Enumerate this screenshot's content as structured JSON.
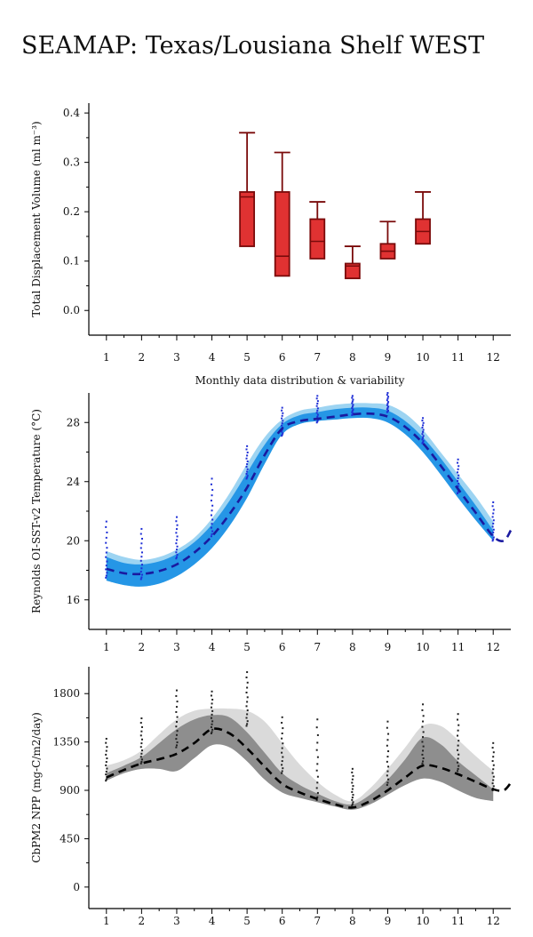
{
  "page": {
    "title": "SEAMAP: Texas/Lousiana Shelf WEST"
  },
  "chart_data": [
    {
      "type": "box",
      "ylabel": "Total Displacement Volume (ml m⁻³)",
      "xlabel": "Monthly data distribution & variability",
      "x_ticks": [
        1,
        2,
        3,
        4,
        5,
        6,
        7,
        8,
        9,
        10,
        11,
        12
      ],
      "y_ticks": [
        0.0,
        0.1,
        0.2,
        0.3,
        0.4
      ],
      "y_tick_labels": [
        "0.0",
        "0.1",
        "0.2",
        "0.3",
        "0.4"
      ],
      "ylim": [
        -0.05,
        0.42
      ],
      "xlim": [
        0.5,
        12.5
      ],
      "box_color": "#e03232",
      "box_edge_color": "#7a0b0b",
      "boxes": [
        {
          "month": 5,
          "q1": 0.13,
          "median": 0.23,
          "q3": 0.24,
          "whisker_high": 0.36
        },
        {
          "month": 6,
          "q1": 0.07,
          "median": 0.11,
          "q3": 0.24,
          "whisker_high": 0.32
        },
        {
          "month": 7,
          "q1": 0.105,
          "median": 0.14,
          "q3": 0.185,
          "whisker_high": 0.22
        },
        {
          "month": 8,
          "q1": 0.065,
          "median": 0.09,
          "q3": 0.095,
          "whisker_high": 0.13
        },
        {
          "month": 9,
          "q1": 0.105,
          "median": 0.12,
          "q3": 0.135,
          "whisker_high": 0.18
        },
        {
          "month": 10,
          "q1": 0.135,
          "median": 0.16,
          "q3": 0.185,
          "whisker_high": 0.24
        }
      ]
    },
    {
      "type": "line",
      "ylabel": "Reynolds OI-SST-v2 Temperature (°C)",
      "x_ticks": [
        1,
        2,
        3,
        4,
        5,
        6,
        7,
        8,
        9,
        10,
        11,
        12
      ],
      "y_ticks": [
        16,
        20,
        24,
        28
      ],
      "y_tick_labels": [
        "16",
        "20",
        "24",
        "28"
      ],
      "ylim": [
        14,
        30
      ],
      "xlim": [
        0.5,
        12.5
      ],
      "line_color": "#1a1aa0",
      "band_light_color": "#9dd4f2",
      "band_dark_color": "#2596e6",
      "dot_color": "#1f2fd6",
      "mean": [
        {
          "x": 1,
          "y": 18.1
        },
        {
          "x": 1.5,
          "y": 17.8
        },
        {
          "x": 2,
          "y": 17.75
        },
        {
          "x": 2.5,
          "y": 17.95
        },
        {
          "x": 3,
          "y": 18.4
        },
        {
          "x": 3.5,
          "y": 19.2
        },
        {
          "x": 4,
          "y": 20.3
        },
        {
          "x": 4.5,
          "y": 21.8
        },
        {
          "x": 5,
          "y": 23.6
        },
        {
          "x": 5.5,
          "y": 25.8
        },
        {
          "x": 6,
          "y": 27.6
        },
        {
          "x": 6.5,
          "y": 28.1
        },
        {
          "x": 7,
          "y": 28.25
        },
        {
          "x": 7.5,
          "y": 28.4
        },
        {
          "x": 8,
          "y": 28.55
        },
        {
          "x": 8.5,
          "y": 28.6
        },
        {
          "x": 9,
          "y": 28.4
        },
        {
          "x": 9.5,
          "y": 27.7
        },
        {
          "x": 10,
          "y": 26.6
        },
        {
          "x": 10.5,
          "y": 25.1
        },
        {
          "x": 11,
          "y": 23.5
        },
        {
          "x": 11.5,
          "y": 21.9
        },
        {
          "x": 12,
          "y": 20.3
        },
        {
          "x": 12.3,
          "y": 20.0
        },
        {
          "x": 12.5,
          "y": 20.7
        }
      ],
      "band_low": [
        {
          "x": 1,
          "y": 17.3
        },
        {
          "x": 1.5,
          "y": 17.0
        },
        {
          "x": 2,
          "y": 16.9
        },
        {
          "x": 2.5,
          "y": 17.1
        },
        {
          "x": 3,
          "y": 17.6
        },
        {
          "x": 3.5,
          "y": 18.4
        },
        {
          "x": 4,
          "y": 19.5
        },
        {
          "x": 4.5,
          "y": 21.0
        },
        {
          "x": 5,
          "y": 22.9
        },
        {
          "x": 5.5,
          "y": 25.2
        },
        {
          "x": 6,
          "y": 27.2
        },
        {
          "x": 6.5,
          "y": 27.9
        },
        {
          "x": 7,
          "y": 28.1
        },
        {
          "x": 7.5,
          "y": 28.2
        },
        {
          "x": 8,
          "y": 28.3
        },
        {
          "x": 8.5,
          "y": 28.3
        },
        {
          "x": 9,
          "y": 28.0
        },
        {
          "x": 9.5,
          "y": 27.2
        },
        {
          "x": 10,
          "y": 26.0
        },
        {
          "x": 10.5,
          "y": 24.5
        },
        {
          "x": 11,
          "y": 22.9
        },
        {
          "x": 11.5,
          "y": 21.4
        },
        {
          "x": 12,
          "y": 20.0
        }
      ],
      "band_mid_high": [
        {
          "x": 1,
          "y": 18.9
        },
        {
          "x": 1.5,
          "y": 18.5
        },
        {
          "x": 2,
          "y": 18.4
        },
        {
          "x": 2.5,
          "y": 18.6
        },
        {
          "x": 3,
          "y": 19.1
        },
        {
          "x": 3.5,
          "y": 19.9
        },
        {
          "x": 4,
          "y": 21.1
        },
        {
          "x": 4.5,
          "y": 22.7
        },
        {
          "x": 5,
          "y": 24.6
        },
        {
          "x": 5.5,
          "y": 26.5
        },
        {
          "x": 6,
          "y": 27.9
        },
        {
          "x": 6.5,
          "y": 28.5
        },
        {
          "x": 7,
          "y": 28.7
        },
        {
          "x": 7.5,
          "y": 28.9
        },
        {
          "x": 8,
          "y": 29.0
        },
        {
          "x": 8.5,
          "y": 29.0
        },
        {
          "x": 9,
          "y": 28.8
        },
        {
          "x": 9.5,
          "y": 28.1
        },
        {
          "x": 10,
          "y": 27.0
        },
        {
          "x": 10.5,
          "y": 25.6
        },
        {
          "x": 11,
          "y": 24.0
        },
        {
          "x": 11.5,
          "y": 22.4
        },
        {
          "x": 12,
          "y": 20.7
        }
      ],
      "band_high": [
        {
          "x": 1,
          "y": 19.3
        },
        {
          "x": 1.5,
          "y": 18.9
        },
        {
          "x": 2,
          "y": 18.7
        },
        {
          "x": 2.5,
          "y": 18.9
        },
        {
          "x": 3,
          "y": 19.4
        },
        {
          "x": 3.5,
          "y": 20.2
        },
        {
          "x": 4,
          "y": 21.5
        },
        {
          "x": 4.5,
          "y": 23.2
        },
        {
          "x": 5,
          "y": 25.2
        },
        {
          "x": 5.5,
          "y": 27.0
        },
        {
          "x": 6,
          "y": 28.2
        },
        {
          "x": 6.5,
          "y": 28.8
        },
        {
          "x": 7,
          "y": 29.0
        },
        {
          "x": 7.5,
          "y": 29.2
        },
        {
          "x": 8,
          "y": 29.3
        },
        {
          "x": 8.5,
          "y": 29.3
        },
        {
          "x": 9,
          "y": 29.2
        },
        {
          "x": 9.5,
          "y": 28.6
        },
        {
          "x": 10,
          "y": 27.5
        },
        {
          "x": 10.5,
          "y": 26.0
        },
        {
          "x": 11,
          "y": 24.5
        },
        {
          "x": 11.5,
          "y": 23.0
        },
        {
          "x": 12,
          "y": 21.3
        }
      ],
      "scatter_ranges": [
        {
          "x": 1,
          "low": 17.5,
          "high": 21.3
        },
        {
          "x": 2,
          "low": 17.4,
          "high": 20.8
        },
        {
          "x": 3,
          "low": 18.8,
          "high": 21.6
        },
        {
          "x": 4,
          "low": 20.3,
          "high": 24.2
        },
        {
          "x": 5,
          "low": 24.2,
          "high": 26.4
        },
        {
          "x": 6,
          "low": 27.1,
          "high": 29.0
        },
        {
          "x": 7,
          "low": 28.0,
          "high": 29.8
        },
        {
          "x": 8,
          "low": 28.5,
          "high": 29.8
        },
        {
          "x": 9,
          "low": 28.7,
          "high": 30.0
        },
        {
          "x": 10,
          "low": 26.6,
          "high": 28.3
        },
        {
          "x": 11,
          "low": 23.2,
          "high": 25.5
        },
        {
          "x": 12,
          "low": 20.0,
          "high": 22.6
        }
      ]
    },
    {
      "type": "line",
      "ylabel": "CbPM2 NPP (mg-C/m2/day)",
      "x_ticks": [
        1,
        2,
        3,
        4,
        5,
        6,
        7,
        8,
        9,
        10,
        11,
        12
      ],
      "y_ticks": [
        0,
        450,
        900,
        1350,
        1800
      ],
      "y_tick_labels": [
        "0",
        "450",
        "900",
        "1350",
        "1800"
      ],
      "ylim": [
        -200,
        2050
      ],
      "xlim": [
        0.5,
        12.5
      ],
      "line_color": "#000000",
      "band_light_color": "#dadada",
      "band_dark_color": "#8e8e8e",
      "dot_color": "#222222",
      "mean": [
        {
          "x": 1,
          "y": 1020
        },
        {
          "x": 1.5,
          "y": 1090
        },
        {
          "x": 2,
          "y": 1150
        },
        {
          "x": 2.5,
          "y": 1190
        },
        {
          "x": 3,
          "y": 1240
        },
        {
          "x": 3.5,
          "y": 1340
        },
        {
          "x": 4,
          "y": 1470
        },
        {
          "x": 4.5,
          "y": 1430
        },
        {
          "x": 5,
          "y": 1290
        },
        {
          "x": 5.5,
          "y": 1120
        },
        {
          "x": 6,
          "y": 960
        },
        {
          "x": 6.5,
          "y": 880
        },
        {
          "x": 7,
          "y": 820
        },
        {
          "x": 7.5,
          "y": 770
        },
        {
          "x": 8,
          "y": 740
        },
        {
          "x": 8.5,
          "y": 800
        },
        {
          "x": 9,
          "y": 900
        },
        {
          "x": 9.5,
          "y": 1020
        },
        {
          "x": 10,
          "y": 1130
        },
        {
          "x": 10.5,
          "y": 1110
        },
        {
          "x": 11,
          "y": 1050
        },
        {
          "x": 11.5,
          "y": 980
        },
        {
          "x": 12,
          "y": 910
        },
        {
          "x": 12.3,
          "y": 900
        },
        {
          "x": 12.5,
          "y": 970
        }
      ],
      "band_low": [
        {
          "x": 1,
          "y": 990
        },
        {
          "x": 1.5,
          "y": 1060
        },
        {
          "x": 2,
          "y": 1100
        },
        {
          "x": 2.5,
          "y": 1100
        },
        {
          "x": 3,
          "y": 1080
        },
        {
          "x": 3.5,
          "y": 1200
        },
        {
          "x": 4,
          "y": 1320
        },
        {
          "x": 4.5,
          "y": 1300
        },
        {
          "x": 5,
          "y": 1170
        },
        {
          "x": 5.5,
          "y": 1000
        },
        {
          "x": 6,
          "y": 880
        },
        {
          "x": 6.5,
          "y": 830
        },
        {
          "x": 7,
          "y": 790
        },
        {
          "x": 7.5,
          "y": 750
        },
        {
          "x": 8,
          "y": 720
        },
        {
          "x": 8.5,
          "y": 770
        },
        {
          "x": 9,
          "y": 860
        },
        {
          "x": 9.5,
          "y": 950
        },
        {
          "x": 10,
          "y": 1010
        },
        {
          "x": 10.5,
          "y": 980
        },
        {
          "x": 11,
          "y": 900
        },
        {
          "x": 11.5,
          "y": 830
        },
        {
          "x": 12,
          "y": 800
        }
      ],
      "band_mid_high": [
        {
          "x": 1,
          "y": 1060
        },
        {
          "x": 1.5,
          "y": 1130
        },
        {
          "x": 2,
          "y": 1210
        },
        {
          "x": 2.5,
          "y": 1340
        },
        {
          "x": 3,
          "y": 1470
        },
        {
          "x": 3.5,
          "y": 1560
        },
        {
          "x": 4,
          "y": 1600
        },
        {
          "x": 4.5,
          "y": 1580
        },
        {
          "x": 5,
          "y": 1440
        },
        {
          "x": 5.5,
          "y": 1250
        },
        {
          "x": 6,
          "y": 1060
        },
        {
          "x": 6.5,
          "y": 950
        },
        {
          "x": 7,
          "y": 870
        },
        {
          "x": 7.5,
          "y": 800
        },
        {
          "x": 8,
          "y": 770
        },
        {
          "x": 8.5,
          "y": 860
        },
        {
          "x": 9,
          "y": 1000
        },
        {
          "x": 9.5,
          "y": 1190
        },
        {
          "x": 10,
          "y": 1390
        },
        {
          "x": 10.5,
          "y": 1330
        },
        {
          "x": 11,
          "y": 1170
        },
        {
          "x": 11.5,
          "y": 1040
        },
        {
          "x": 12,
          "y": 910
        }
      ],
      "band_high": [
        {
          "x": 1,
          "y": 1130
        },
        {
          "x": 1.5,
          "y": 1180
        },
        {
          "x": 2,
          "y": 1270
        },
        {
          "x": 2.5,
          "y": 1420
        },
        {
          "x": 3,
          "y": 1560
        },
        {
          "x": 3.5,
          "y": 1640
        },
        {
          "x": 4,
          "y": 1660
        },
        {
          "x": 4.5,
          "y": 1660
        },
        {
          "x": 5,
          "y": 1640
        },
        {
          "x": 5.5,
          "y": 1540
        },
        {
          "x": 6,
          "y": 1340
        },
        {
          "x": 6.5,
          "y": 1140
        },
        {
          "x": 7,
          "y": 980
        },
        {
          "x": 7.5,
          "y": 860
        },
        {
          "x": 8,
          "y": 800
        },
        {
          "x": 8.5,
          "y": 920
        },
        {
          "x": 9,
          "y": 1100
        },
        {
          "x": 9.5,
          "y": 1300
        },
        {
          "x": 10,
          "y": 1500
        },
        {
          "x": 10.5,
          "y": 1500
        },
        {
          "x": 11,
          "y": 1370
        },
        {
          "x": 11.5,
          "y": 1220
        },
        {
          "x": 12,
          "y": 1080
        }
      ],
      "scatter_ranges": [
        {
          "x": 1,
          "low": 990,
          "high": 1380
        },
        {
          "x": 2,
          "low": 1150,
          "high": 1570
        },
        {
          "x": 3,
          "low": 1300,
          "high": 1830
        },
        {
          "x": 4,
          "low": 1430,
          "high": 1820
        },
        {
          "x": 5,
          "low": 1500,
          "high": 2000
        },
        {
          "x": 6,
          "low": 1060,
          "high": 1580
        },
        {
          "x": 7,
          "low": 810,
          "high": 1560
        },
        {
          "x": 8,
          "low": 760,
          "high": 1100
        },
        {
          "x": 9,
          "low": 950,
          "high": 1540
        },
        {
          "x": 10,
          "low": 1150,
          "high": 1700
        },
        {
          "x": 11,
          "low": 1080,
          "high": 1610
        },
        {
          "x": 12,
          "low": 900,
          "high": 1340
        }
      ]
    }
  ]
}
